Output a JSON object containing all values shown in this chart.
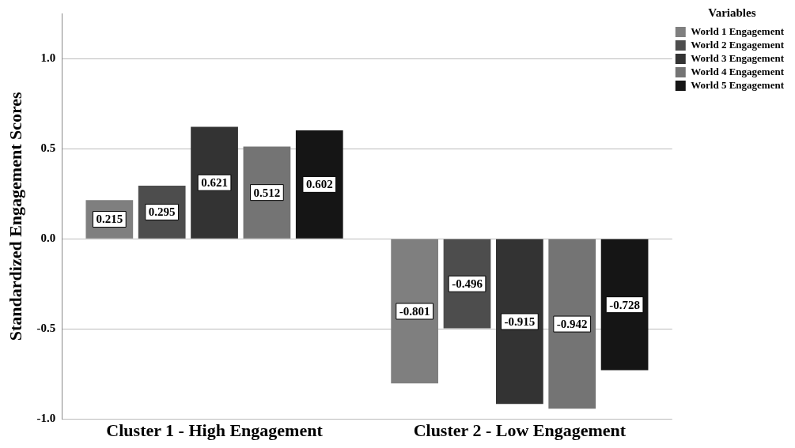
{
  "chart_data": {
    "type": "bar",
    "ylabel": "Standardized Engagement Scores",
    "legend_title": "Variables",
    "categories": [
      "Cluster 1 - High Engagement",
      "Cluster 2 - Low Engagement"
    ],
    "series": [
      {
        "name": "World 1 Engagement",
        "color": "#7f7f7f",
        "values": [
          0.215,
          -0.801
        ]
      },
      {
        "name": "World 2 Engagement",
        "color": "#4d4d4d",
        "values": [
          0.295,
          -0.496
        ]
      },
      {
        "name": "World 3 Engagement",
        "color": "#333333",
        "values": [
          0.621,
          -0.915
        ]
      },
      {
        "name": "World 4 Engagement",
        "color": "#747474",
        "values": [
          0.512,
          -0.942
        ]
      },
      {
        "name": "World 5 Engagement",
        "color": "#151515",
        "values": [
          0.602,
          -0.728
        ]
      }
    ],
    "ylim": [
      -1.0,
      1.25
    ],
    "yticks": [
      {
        "value": -1,
        "label": "-1.0"
      },
      {
        "value": -0.5,
        "label": "-0.5"
      },
      {
        "value": 0,
        "label": "0.0"
      },
      {
        "value": 0.5,
        "label": "0.5"
      },
      {
        "value": 1,
        "label": "1.0"
      }
    ],
    "grid": "y",
    "legend": "top right",
    "data_labels": true
  }
}
